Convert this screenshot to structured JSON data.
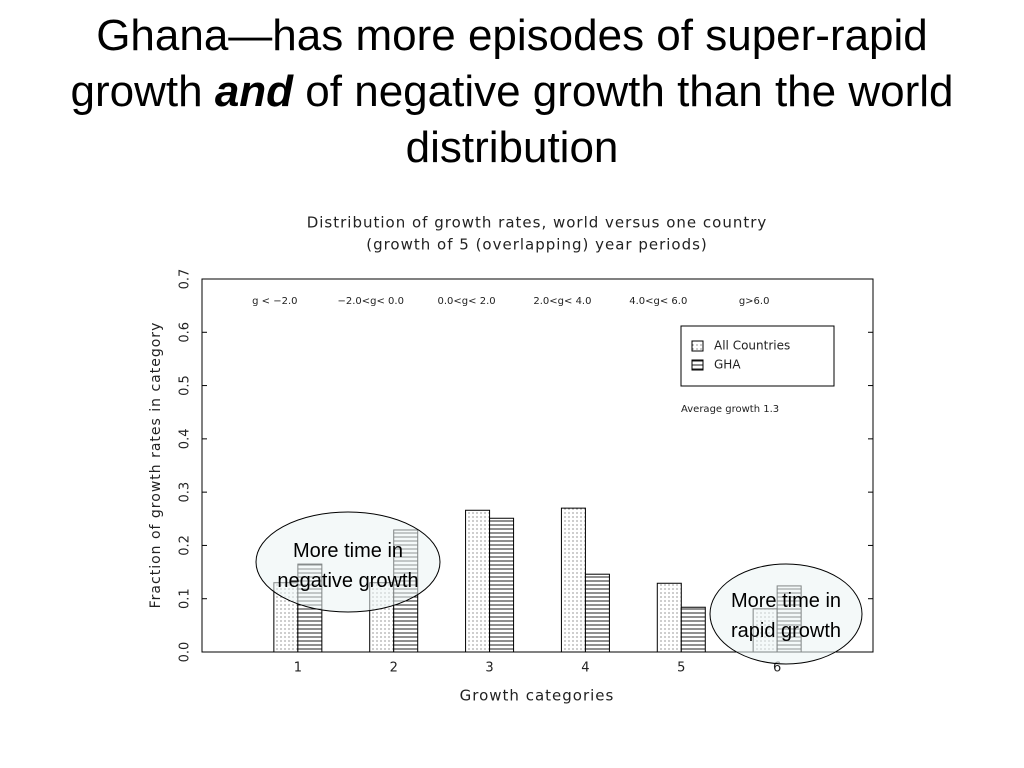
{
  "slide_title": {
    "before": "Ghana—has more episodes of super-rapid growth",
    "emphasis": "and",
    "after": "of negative growth than the world distribution"
  },
  "chart_data": {
    "type": "bar",
    "title": "Distribution of growth rates, world versus one country",
    "subtitle": "(growth of 5 (overlapping) year periods)",
    "x_label": "Growth categories",
    "y_label": "Fraction of growth rates in category",
    "categories": [
      "1",
      "2",
      "3",
      "4",
      "5",
      "6"
    ],
    "category_ranges": [
      "g < −2.0",
      "−2.0<g< 0.0",
      "0.0<g< 2.0",
      "2.0<g< 4.0",
      "4.0<g< 6.0",
      "g>6.0"
    ],
    "series": [
      {
        "name": "All Countries",
        "color": "#000000",
        "pattern": "dots",
        "values": [
          0.13,
          0.13,
          0.266,
          0.27,
          0.129,
          0.081
        ]
      },
      {
        "name": "GHA",
        "color": "#000000",
        "pattern": "hlines",
        "values": [
          0.165,
          0.229,
          0.251,
          0.146,
          0.084,
          0.124
        ]
      }
    ],
    "ylim": [
      0,
      0.7
    ],
    "yticks": [
      {
        "value": 0,
        "label": "0.0"
      },
      0.1,
      0.2,
      0.3,
      0.4,
      0.5,
      0.6,
      0.7
    ],
    "annotation": "Average growth 1.3",
    "legend_position": "upper right",
    "callouts": [
      "More time in negative growth",
      "More time in rapid growth"
    ]
  }
}
